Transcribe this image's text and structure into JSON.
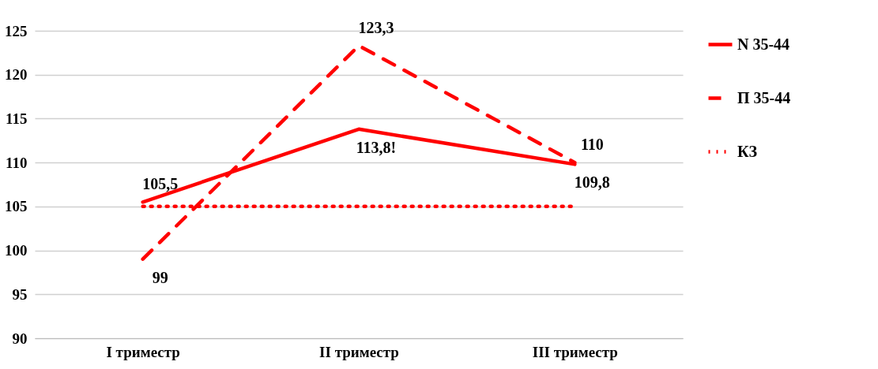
{
  "chart_data": {
    "type": "line",
    "categories": [
      "I триместр",
      "II триместр",
      "III триместр"
    ],
    "series": [
      {
        "name": "N 35-44",
        "color": "#ff0000",
        "line_style": "solid",
        "values": [
          105.5,
          113.8,
          109.8
        ],
        "value_labels": [
          "105,5",
          "113,8!",
          "109,8"
        ]
      },
      {
        "name": "П 35-44",
        "color": "#ff0000",
        "line_style": "dashed",
        "values": [
          99,
          123.3,
          110
        ],
        "value_labels": [
          "99",
          "123,3",
          "110"
        ]
      },
      {
        "name": "КЗ",
        "color": "#ff0000",
        "line_style": "dotted",
        "values": [
          105,
          105,
          105
        ]
      }
    ],
    "ylim": [
      90,
      125
    ],
    "yticks": [
      90,
      95,
      100,
      105,
      110,
      115,
      120,
      125
    ],
    "grid": "y",
    "legend": "right",
    "marker": "none"
  }
}
